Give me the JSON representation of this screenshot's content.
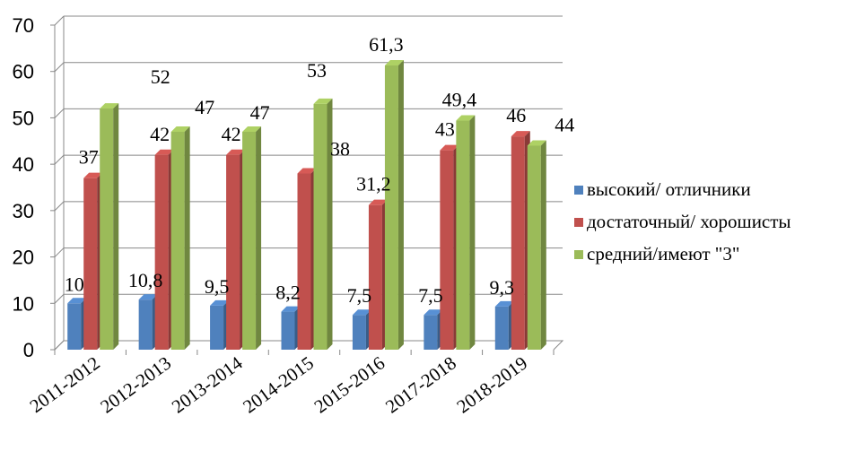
{
  "chart_data": {
    "type": "bar",
    "title": "",
    "xlabel": "",
    "ylabel": "",
    "ylim": [
      0,
      70
    ],
    "yticks": [
      0,
      10,
      20,
      30,
      40,
      50,
      60,
      70
    ],
    "grid": true,
    "legend_position": "right",
    "categories": [
      "2011-2012",
      "2012-2013",
      "2013-2014",
      "2014-2015",
      "2015-2016",
      "2017-2018",
      "2018-2019"
    ],
    "series": [
      {
        "name": "высокий/ отличники",
        "color": "#4F81BD",
        "values": [
          10,
          10.8,
          9.5,
          8.2,
          7.5,
          7.5,
          9.3
        ],
        "labels": [
          "10",
          "10,8",
          "9,5",
          "8,2",
          "7,5",
          "7,5",
          "9,3"
        ]
      },
      {
        "name": "достаточный/ хорошисты",
        "color": "#C0504D",
        "values": [
          37,
          42,
          42,
          38,
          31.2,
          43,
          46
        ],
        "labels": [
          "37",
          "42",
          "42",
          "38",
          "31,2",
          "43",
          "46"
        ]
      },
      {
        "name": "средний/имеют \"3\"",
        "color": "#9BBB59",
        "values": [
          52,
          47,
          47,
          53,
          61.3,
          49.4,
          44
        ],
        "labels": [
          "52",
          "47",
          "47",
          "53",
          "61,3",
          "49,4",
          "44"
        ]
      }
    ]
  }
}
